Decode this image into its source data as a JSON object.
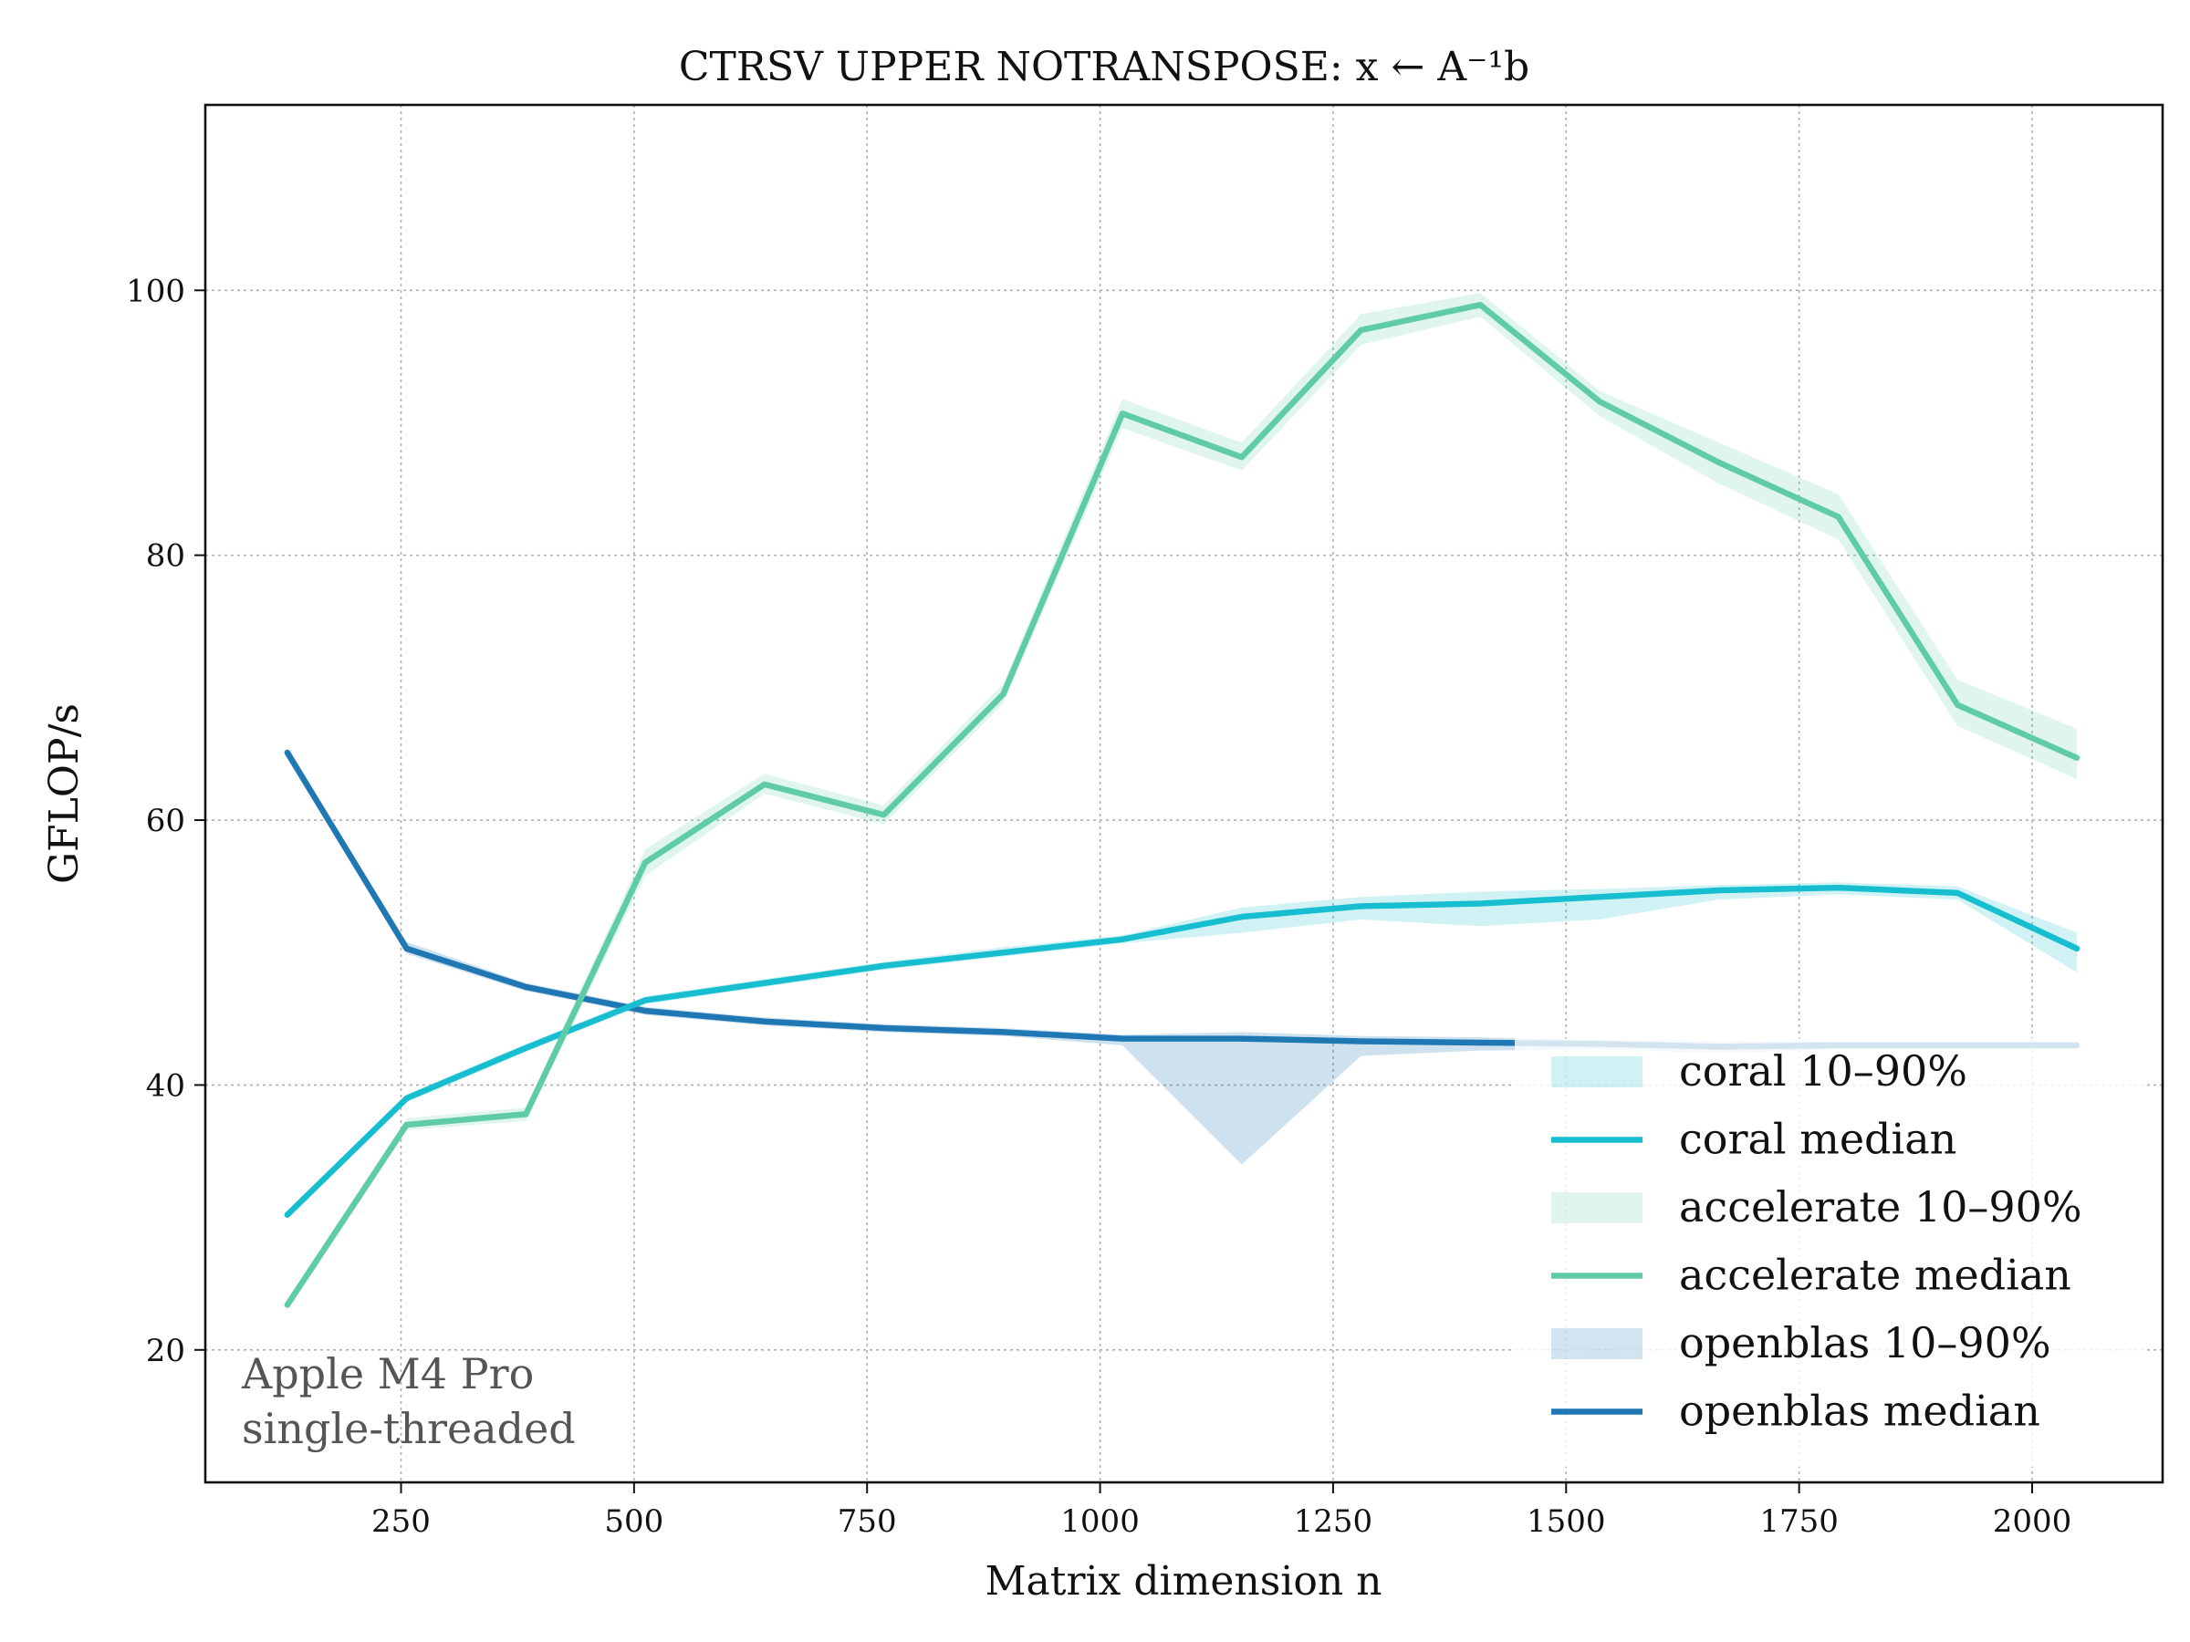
{
  "chart_data": {
    "type": "line",
    "title": "CTRSV UPPER NOTRANSPOSE: x ← A⁻¹b",
    "xlabel": "Matrix dimension n",
    "ylabel": "GFLOP/s",
    "xlim": [
      40,
      2140
    ],
    "ylim": [
      10,
      114
    ],
    "xticks": [
      250,
      500,
      750,
      1000,
      1250,
      1500,
      1750,
      2000
    ],
    "yticks": [
      20,
      40,
      60,
      80,
      100
    ],
    "grid": true,
    "legend_position": "lower-right",
    "annotation": [
      "Apple M4 Pro",
      "single-threaded"
    ],
    "x": [
      128,
      256,
      384,
      512,
      640,
      768,
      896,
      1024,
      1152,
      1280,
      1408,
      1536,
      1664,
      1792,
      1920,
      2048
    ],
    "series": [
      {
        "name": "coral",
        "color": "#17becf",
        "band_label": "coral 10–90%",
        "median_label": "coral median",
        "median": [
          30.2,
          39.0,
          42.8,
          46.4,
          47.7,
          49.0,
          50.0,
          51.0,
          52.7,
          53.5,
          53.7,
          54.2,
          54.7,
          54.9,
          54.5,
          50.3
        ],
        "p10": [
          29.9,
          38.7,
          42.5,
          46.1,
          47.4,
          48.7,
          49.7,
          50.7,
          51.5,
          52.5,
          52.0,
          52.5,
          54.0,
          54.4,
          54.0,
          48.5
        ],
        "p90": [
          30.5,
          39.3,
          43.1,
          46.7,
          48.0,
          49.3,
          50.4,
          51.3,
          53.4,
          54.2,
          54.6,
          54.8,
          55.1,
          55.3,
          55.0,
          51.5
        ]
      },
      {
        "name": "accelerate",
        "color": "#5fcca6",
        "band_label": "accelerate 10–90%",
        "median_label": "accelerate median",
        "median": [
          23.4,
          37.0,
          37.8,
          56.8,
          62.7,
          60.4,
          69.5,
          90.7,
          87.4,
          97.0,
          98.9,
          91.6,
          87.0,
          82.9,
          68.7,
          64.7
        ],
        "p10": [
          23.0,
          36.6,
          37.3,
          55.8,
          62.0,
          59.7,
          68.8,
          89.6,
          86.4,
          95.9,
          98.0,
          90.5,
          85.4,
          81.2,
          67.1,
          63.1
        ],
        "p90": [
          23.8,
          37.5,
          38.3,
          57.8,
          63.5,
          61.1,
          70.3,
          91.8,
          88.5,
          98.2,
          99.8,
          92.4,
          88.5,
          84.6,
          70.6,
          66.9
        ]
      },
      {
        "name": "openblas",
        "color": "#1f77b4",
        "band_label": "openblas 10–90%",
        "median_label": "openblas median",
        "median": [
          65.1,
          50.3,
          47.4,
          45.6,
          44.8,
          44.3,
          44.0,
          43.5,
          43.5,
          43.3,
          43.2,
          43.1,
          42.9,
          43.0,
          43.0,
          43.0
        ],
        "p10": [
          64.8,
          49.9,
          47.1,
          45.3,
          44.5,
          44.0,
          43.7,
          43.0,
          34.0,
          42.2,
          42.6,
          42.7,
          42.4,
          42.7,
          42.7,
          42.7
        ],
        "p90": [
          65.4,
          50.8,
          47.7,
          45.9,
          45.1,
          44.6,
          44.3,
          43.8,
          44.0,
          43.7,
          43.6,
          43.4,
          43.3,
          43.3,
          43.3,
          43.3
        ]
      }
    ]
  }
}
